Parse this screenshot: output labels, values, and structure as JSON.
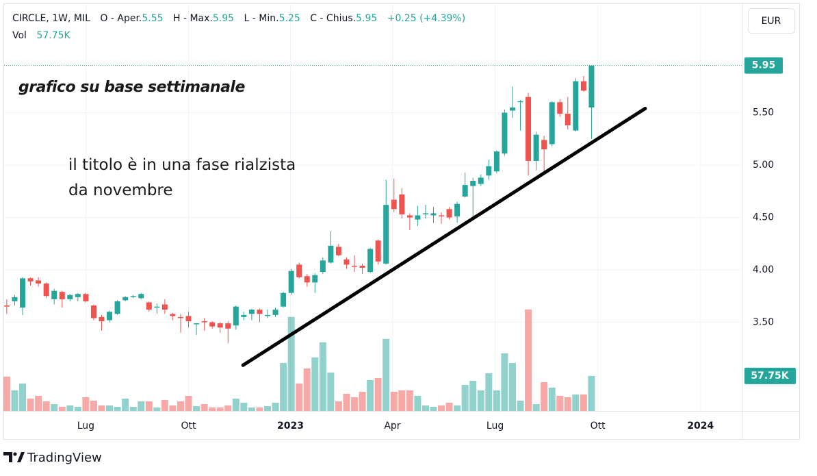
{
  "chart_data": {
    "type": "candlestick",
    "symbol": "CIRCLE, 1W, MIL",
    "ohlc_keys": [
      "O",
      "- Aper.",
      "H",
      "- Max.",
      "L",
      "- Min.",
      "C",
      "- Chius."
    ],
    "change": "+0.25 (+4.39%)",
    "volume_title": "Vol",
    "last_volume_label": "57.75K",
    "currency": "EUR",
    "brand": "TradingView",
    "annotations": [
      "grafico su base settimanale",
      "il titolo è in una fase rialzista",
      "da novembre"
    ],
    "up_color": "#26a69a",
    "down_color": "#ef5350",
    "volume_up_color": "rgba(38,166,154,0.5)",
    "volume_down_color": "rgba(239,83,80,0.5)",
    "open": [
      3.66,
      3.7,
      3.64,
      3.92,
      3.9,
      3.87,
      3.72,
      3.79,
      3.72,
      3.74,
      3.77,
      3.66,
      3.55,
      3.52,
      3.58,
      3.71,
      3.74,
      3.73,
      3.69,
      3.64,
      3.67,
      3.58,
      3.55,
      3.56,
      3.48,
      3.51,
      3.5,
      3.49,
      3.49,
      3.47,
      3.55,
      3.58,
      3.62,
      3.56,
      3.57,
      3.65,
      3.78,
      4.05,
      3.94,
      3.88,
      3.98,
      4.07,
      4.22,
      4.1,
      4.04,
      4.04,
      3.98,
      4.28,
      4.06,
      4.67,
      4.72,
      4.52,
      4.48,
      4.53,
      4.52,
      4.52,
      4.58,
      4.51,
      4.7,
      4.8,
      4.82,
      4.9,
      4.94,
      5.11,
      5.52,
      5.6,
      5.65,
      5.04,
      5.24,
      5.2,
      5.6,
      5.49,
      5.33,
      5.8,
      5.55
    ],
    "high": [
      3.72,
      3.76,
      3.93,
      3.93,
      3.93,
      3.88,
      3.82,
      3.8,
      3.77,
      3.78,
      3.78,
      3.67,
      3.57,
      3.61,
      3.71,
      3.75,
      3.76,
      3.78,
      3.7,
      3.68,
      3.72,
      3.59,
      3.58,
      3.6,
      3.49,
      3.54,
      3.51,
      3.5,
      3.51,
      3.66,
      3.6,
      3.63,
      3.63,
      3.62,
      3.64,
      3.79,
      4.01,
      4.07,
      3.96,
      3.97,
      4.12,
      4.37,
      4.25,
      4.12,
      4.14,
      4.06,
      4.21,
      4.29,
      4.86,
      4.87,
      4.78,
      4.54,
      4.61,
      4.62,
      4.6,
      4.55,
      4.6,
      4.65,
      4.93,
      4.88,
      4.91,
      5.05,
      5.14,
      5.53,
      5.75,
      5.62,
      5.69,
      5.32,
      5.28,
      5.61,
      5.63,
      5.65,
      5.83,
      5.85,
      5.95
    ],
    "low": [
      3.58,
      3.66,
      3.57,
      3.85,
      3.84,
      3.73,
      3.67,
      3.64,
      3.7,
      3.7,
      3.69,
      3.52,
      3.42,
      3.5,
      3.57,
      3.7,
      3.73,
      3.72,
      3.6,
      3.58,
      3.58,
      3.52,
      3.4,
      3.45,
      3.38,
      3.42,
      3.44,
      3.4,
      3.3,
      3.43,
      3.52,
      3.52,
      3.5,
      3.54,
      3.55,
      3.64,
      3.76,
      3.92,
      3.84,
      3.78,
      3.96,
      4.06,
      4.13,
      4.01,
      3.98,
      3.96,
      3.97,
      4.05,
      4.05,
      4.55,
      4.49,
      4.38,
      4.42,
      4.49,
      4.45,
      4.44,
      4.48,
      4.45,
      4.69,
      4.51,
      4.8,
      4.86,
      4.92,
      5.09,
      5.45,
      5.33,
      4.9,
      4.95,
      4.94,
      5.18,
      5.46,
      5.34,
      5.32,
      5.7,
      5.25
    ],
    "close": [
      3.65,
      3.74,
      3.92,
      3.89,
      3.87,
      3.75,
      3.8,
      3.72,
      3.76,
      3.77,
      3.7,
      3.54,
      3.51,
      3.6,
      3.7,
      3.74,
      3.75,
      3.77,
      3.62,
      3.65,
      3.62,
      3.56,
      3.54,
      3.51,
      3.49,
      3.5,
      3.46,
      3.45,
      3.44,
      3.65,
      3.57,
      3.62,
      3.58,
      3.57,
      3.62,
      3.78,
      3.99,
      3.93,
      3.88,
      3.95,
      4.09,
      4.23,
      4.14,
      4.05,
      4.03,
      4.02,
      4.2,
      4.08,
      4.62,
      4.58,
      4.53,
      4.5,
      4.52,
      4.54,
      4.54,
      4.51,
      4.5,
      4.63,
      4.81,
      4.85,
      4.88,
      4.99,
      5.13,
      5.5,
      5.55,
      5.61,
      5.04,
      5.29,
      5.15,
      5.6,
      5.49,
      5.38,
      5.8,
      5.71,
      5.95
    ],
    "volume": [
      56600,
      33960,
      45300,
      20400,
      24900,
      15800,
      11300,
      6800,
      9100,
      6800,
      22600,
      17000,
      9100,
      9100,
      6800,
      20400,
      6800,
      15800,
      15800,
      5700,
      18100,
      9100,
      15800,
      24900,
      7900,
      11300,
      5700,
      5700,
      9100,
      20400,
      13600,
      5700,
      5700,
      7900,
      13600,
      79200,
      155100,
      45300,
      70200,
      88300,
      113200,
      63400,
      15800,
      28300,
      22600,
      31700,
      50900,
      54300,
      118900,
      31700,
      33960,
      33960,
      24900,
      9100,
      6800,
      9100,
      13600,
      9100,
      43000,
      49800,
      33960,
      62300,
      33960,
      95100,
      79200,
      17000,
      167500,
      11300,
      47500,
      38500,
      24900,
      22600,
      27200,
      27200,
      57750
    ],
    "volume_lim": [
      0,
      200000
    ],
    "trendline": {
      "x": [
        29.9,
        80.8
      ],
      "y": [
        3.09,
        5.54
      ],
      "color": "#000000"
    },
    "xlim": [
      -0.6,
      93.1
    ],
    "ylim": [
      2.654,
      6.51
    ],
    "xticks": [
      {
        "value": 10,
        "label": "Lug"
      },
      {
        "value": 23,
        "label": "Ott"
      },
      {
        "value": 35.9,
        "label": "2023"
      },
      {
        "value": 48.8,
        "label": "Apr"
      },
      {
        "value": 61.8,
        "label": "Lug"
      },
      {
        "value": 74.8,
        "label": "Ott"
      },
      {
        "value": 87.8,
        "label": "2024"
      }
    ],
    "yticks": [
      {
        "value": 3.5,
        "label": "3.50"
      },
      {
        "value": 4,
        "label": "4.00"
      },
      {
        "value": 4.5,
        "label": "4.50"
      },
      {
        "value": 5,
        "label": "5.00"
      },
      {
        "value": 5.5,
        "label": "5.50"
      }
    ],
    "grid": true
  }
}
